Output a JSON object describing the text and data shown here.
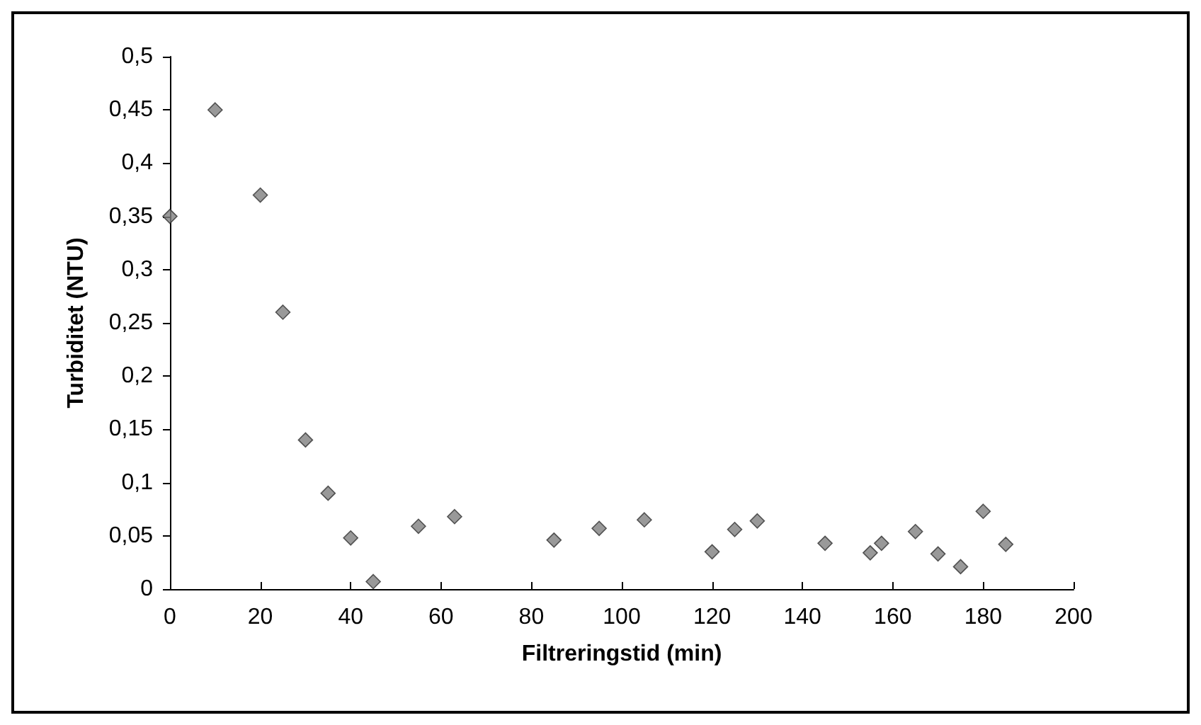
{
  "chart_data": {
    "type": "scatter",
    "xlabel": "Filtreringstid (min)",
    "ylabel": "Turbiditet (NTU)",
    "x": [
      0,
      10,
      20,
      25,
      30,
      35,
      40,
      45,
      55,
      63,
      85,
      95,
      105,
      120,
      125,
      130,
      145,
      155,
      157.5,
      165,
      170,
      175,
      180,
      185
    ],
    "series": [
      {
        "color": "#808080",
        "values": [
          0.35,
          0.45,
          0.37,
          0.26,
          0.14,
          0.09,
          0.048,
          0.007,
          0.059,
          0.068,
          0.046,
          0.057,
          0.065,
          0.035,
          0.056,
          0.064,
          0.043,
          0.034,
          0.043,
          0.054,
          0.033,
          0.021,
          0.073,
          0.042
        ]
      }
    ],
    "xlim": [
      0,
      200
    ],
    "xticks": [
      0,
      20,
      40,
      60,
      80,
      100,
      120,
      140,
      160,
      180,
      200
    ],
    "ylim": [
      0,
      0.5
    ],
    "yticks": [
      {
        "value": 0,
        "label": "0"
      },
      {
        "value": 0.05,
        "label": "0,05"
      },
      {
        "value": 0.1,
        "label": "0,1"
      },
      {
        "value": 0.15,
        "label": "0,15"
      },
      {
        "value": 0.2,
        "label": "0,2"
      },
      {
        "value": 0.25,
        "label": "0,25"
      },
      {
        "value": 0.3,
        "label": "0,3"
      },
      {
        "value": 0.35,
        "label": "0,35"
      },
      {
        "value": 0.4,
        "label": "0,4"
      },
      {
        "value": 0.45,
        "label": "0,45"
      },
      {
        "value": 0.5,
        "label": "0,5"
      }
    ],
    "grid": false,
    "marker": "diamond"
  }
}
